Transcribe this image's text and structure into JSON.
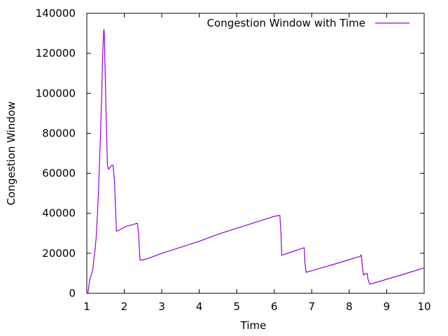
{
  "chart_data": {
    "type": "line",
    "title": "",
    "xlabel": "Time",
    "ylabel": "Congestion Window",
    "xlim": [
      1,
      10
    ],
    "ylim": [
      0,
      140000
    ],
    "x_ticks": [
      1,
      2,
      3,
      4,
      5,
      6,
      7,
      8,
      9,
      10
    ],
    "y_ticks": [
      0,
      20000,
      40000,
      60000,
      80000,
      100000,
      120000,
      140000
    ],
    "grid": false,
    "legend_position": "top-right",
    "series": [
      {
        "name": "Congestion Window with Time",
        "color": "#9400d3",
        "x": [
          1.03,
          1.05,
          1.08,
          1.1,
          1.13,
          1.16,
          1.19,
          1.22,
          1.25,
          1.28,
          1.31,
          1.34,
          1.37,
          1.4,
          1.42,
          1.45,
          1.46,
          1.47,
          1.48,
          1.5,
          1.53,
          1.55,
          1.58,
          1.62,
          1.67,
          1.7,
          1.74,
          1.79,
          1.85,
          1.95,
          2.05,
          2.15,
          2.25,
          2.35,
          2.38,
          2.42,
          2.6,
          3.0,
          3.5,
          4.0,
          4.5,
          5.0,
          5.5,
          6.0,
          6.15,
          6.18,
          6.2,
          6.4,
          6.6,
          6.8,
          6.82,
          6.85,
          7.0,
          7.5,
          8.0,
          8.3,
          8.32,
          8.35,
          8.38,
          8.4,
          8.45,
          8.48,
          8.5,
          8.55,
          8.6,
          9.0,
          9.5,
          10.0
        ],
        "y": [
          0,
          3000,
          7000,
          8000,
          10000,
          12000,
          17000,
          22000,
          28000,
          38000,
          50000,
          66000,
          82000,
          100000,
          118000,
          131000,
          132000,
          128000,
          118000,
          102000,
          78000,
          64000,
          62000,
          63000,
          64000,
          64000,
          56000,
          31000,
          31500,
          32500,
          33500,
          34000,
          34500,
          35000,
          30000,
          16500,
          17200,
          20000,
          23000,
          26000,
          29500,
          32500,
          35500,
          38500,
          39000,
          30000,
          19000,
          20300,
          21600,
          22800,
          15000,
          10500,
          11300,
          14000,
          16800,
          18600,
          19300,
          14000,
          9000,
          9500,
          9800,
          10000,
          7000,
          4500,
          4800,
          7000,
          9800,
          12700
        ]
      }
    ]
  }
}
